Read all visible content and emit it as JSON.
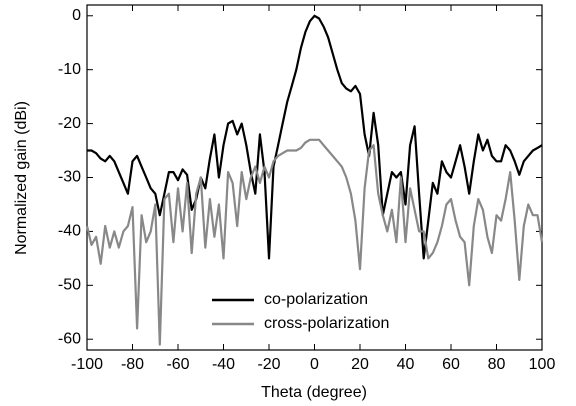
{
  "chart_data": {
    "type": "line",
    "xlabel": "Theta (degree)",
    "ylabel": "Normalized gain (dBi)",
    "x": [
      -100,
      -98,
      -96,
      -94,
      -92,
      -90,
      -88,
      -86,
      -84,
      -82,
      -80,
      -78,
      -76,
      -74,
      -72,
      -70,
      -68,
      -66,
      -64,
      -62,
      -60,
      -58,
      -56,
      -54,
      -52,
      -50,
      -48,
      -46,
      -44,
      -42,
      -40,
      -38,
      -36,
      -34,
      -32,
      -30,
      -28,
      -26,
      -24,
      -22,
      -20,
      -18,
      -16,
      -14,
      -12,
      -10,
      -8,
      -6,
      -4,
      -2,
      0,
      2,
      4,
      6,
      8,
      10,
      12,
      14,
      16,
      18,
      20,
      22,
      24,
      26,
      28,
      30,
      32,
      34,
      36,
      38,
      40,
      42,
      44,
      46,
      48,
      50,
      52,
      54,
      56,
      58,
      60,
      62,
      64,
      66,
      68,
      70,
      72,
      74,
      76,
      78,
      80,
      82,
      84,
      86,
      88,
      90,
      92,
      94,
      96,
      98,
      100
    ],
    "series": [
      {
        "name": "co-polarization",
        "color": "#000000",
        "values": [
          -25,
          -25,
          -25.5,
          -26.5,
          -27,
          -26,
          -27,
          -29,
          -31,
          -33,
          -27,
          -26,
          -28,
          -30,
          -32,
          -33,
          -37,
          -33,
          -29,
          -29,
          -30.5,
          -28.5,
          -29.5,
          -36,
          -34,
          -30,
          -32,
          -26.5,
          -22,
          -30,
          -24,
          -20,
          -19.5,
          -22,
          -20,
          -24,
          -29,
          -33,
          -22,
          -29,
          -45,
          -28,
          -24,
          -20,
          -16,
          -13,
          -10,
          -6,
          -3,
          -1,
          0,
          -0.5,
          -2,
          -4,
          -7,
          -10,
          -12.5,
          -13.5,
          -14,
          -13,
          -14.5,
          -22,
          -26,
          -18,
          -24,
          -37,
          -33,
          -29,
          -30,
          -29,
          -35,
          -24,
          -20.5,
          -33,
          -45,
          -38,
          -31,
          -33,
          -27,
          -29,
          -30,
          -27,
          -24,
          -28,
          -33,
          -27,
          -22,
          -25,
          -23,
          -26,
          -27,
          -27,
          -24,
          -25,
          -27,
          -29.5,
          -27,
          -26,
          -25,
          -24.5,
          -24
        ]
      },
      {
        "name": "cross-polarization",
        "color": "#888888",
        "values": [
          -39,
          -42.5,
          -41,
          -46,
          -39,
          -43,
          -40,
          -43,
          -40,
          -39,
          -35.5,
          -58,
          -37,
          -42,
          -40,
          -35,
          -61,
          -34,
          -33,
          -42,
          -32,
          -40,
          -31,
          -44,
          -33,
          -30,
          -43,
          -34,
          -41,
          -35,
          -45,
          -29,
          -31,
          -39,
          -29,
          -34,
          -30,
          -28,
          -31,
          -28,
          -30,
          -27,
          -26,
          -25.5,
          -25,
          -25,
          -25,
          -24.5,
          -23.5,
          -23,
          -23,
          -23,
          -24,
          -25,
          -26,
          -27,
          -28,
          -30,
          -33,
          -38,
          -47,
          -32,
          -25,
          -24,
          -33,
          -37,
          -40,
          -36,
          -42,
          -30,
          -42,
          -32,
          -36,
          -40,
          -40,
          -45,
          -44,
          -42,
          -39,
          -35,
          -34,
          -38,
          -41,
          -42,
          -50,
          -39,
          -34,
          -36,
          -41,
          -44,
          -37,
          -38,
          -34,
          -29,
          -38,
          -49,
          -39,
          -35,
          -37,
          -37,
          -42
        ]
      }
    ],
    "xlim": [
      -100,
      100
    ],
    "xticks": [
      -100,
      -80,
      -60,
      -40,
      -20,
      0,
      20,
      40,
      60,
      80,
      100
    ],
    "ylim": [
      -62,
      2
    ],
    "yticks": [
      0,
      -10,
      -20,
      -30,
      -40,
      -50,
      -60
    ],
    "legend": "lower center"
  }
}
